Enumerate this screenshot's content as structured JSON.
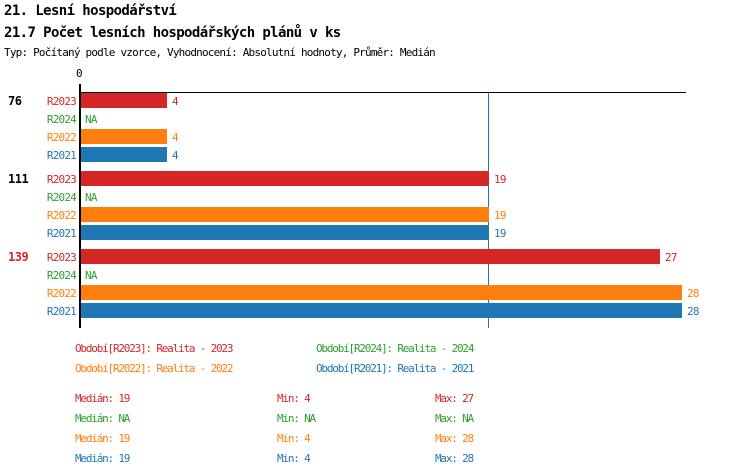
{
  "header": {
    "title": "21. Lesní hospodářství",
    "subtitle": "21.7 Počet lesních hospodářských plánů v ks",
    "meta": "Typ: Počítaný podle vzorce, Vyhodnocení: Absolutní hodnoty, Průměr: Medián"
  },
  "colors": {
    "r2023": "#d62728",
    "r2024": "#2ca02c",
    "r2022": "#ff7f0e",
    "r2021": "#1f77b4",
    "axis": "#000000",
    "median_line": "#1f77b4",
    "text": "#000000"
  },
  "chart_data": {
    "type": "bar",
    "orientation": "horizontal",
    "title": "21.7 Počet lesních hospodářských plánů v ks",
    "x_axis": {
      "zero_tick_label": "0",
      "min": 0,
      "max_visible": 28,
      "median_line_value": 19,
      "grid": false
    },
    "series_order": [
      "R2023",
      "R2024",
      "R2022",
      "R2021"
    ],
    "groups": [
      {
        "label": "76",
        "label_color": "#000000",
        "rows": [
          {
            "series": "R2023",
            "value": 4,
            "display": "4"
          },
          {
            "series": "R2024",
            "value": null,
            "display": "NA"
          },
          {
            "series": "R2022",
            "value": 4,
            "display": "4"
          },
          {
            "series": "R2021",
            "value": 4,
            "display": "4"
          }
        ]
      },
      {
        "label": "111",
        "label_color": "#000000",
        "rows": [
          {
            "series": "R2023",
            "value": 19,
            "display": "19"
          },
          {
            "series": "R2024",
            "value": null,
            "display": "NA"
          },
          {
            "series": "R2022",
            "value": 19,
            "display": "19"
          },
          {
            "series": "R2021",
            "value": 19,
            "display": "19"
          }
        ]
      },
      {
        "label": "139",
        "label_color": "#d62728",
        "rows": [
          {
            "series": "R2023",
            "value": 27,
            "display": "27"
          },
          {
            "series": "R2024",
            "value": null,
            "display": "NA"
          },
          {
            "series": "R2022",
            "value": 28,
            "display": "28"
          },
          {
            "series": "R2021",
            "value": 28,
            "display": "28"
          }
        ]
      }
    ]
  },
  "legend": {
    "items": [
      {
        "series": "R2023",
        "label": "Období[R2023]: Realita - 2023"
      },
      {
        "series": "R2024",
        "label": "Období[R2024]: Realita - 2024"
      },
      {
        "series": "R2022",
        "label": "Období[R2022]: Realita - 2022"
      },
      {
        "series": "R2021",
        "label": "Období[R2021]: Realita - 2021"
      }
    ]
  },
  "stats": {
    "rows": [
      {
        "series": "R2023",
        "median": "Medián: 19",
        "min": "Min: 4",
        "max": "Max: 27"
      },
      {
        "series": "R2024",
        "median": "Medián: NA",
        "min": "Min: NA",
        "max": "Max: NA"
      },
      {
        "series": "R2022",
        "median": "Medián: 19",
        "min": "Min: 4",
        "max": "Max: 28"
      },
      {
        "series": "R2021",
        "median": "Medián: 19",
        "min": "Min: 4",
        "max": "Max: 28"
      }
    ]
  }
}
